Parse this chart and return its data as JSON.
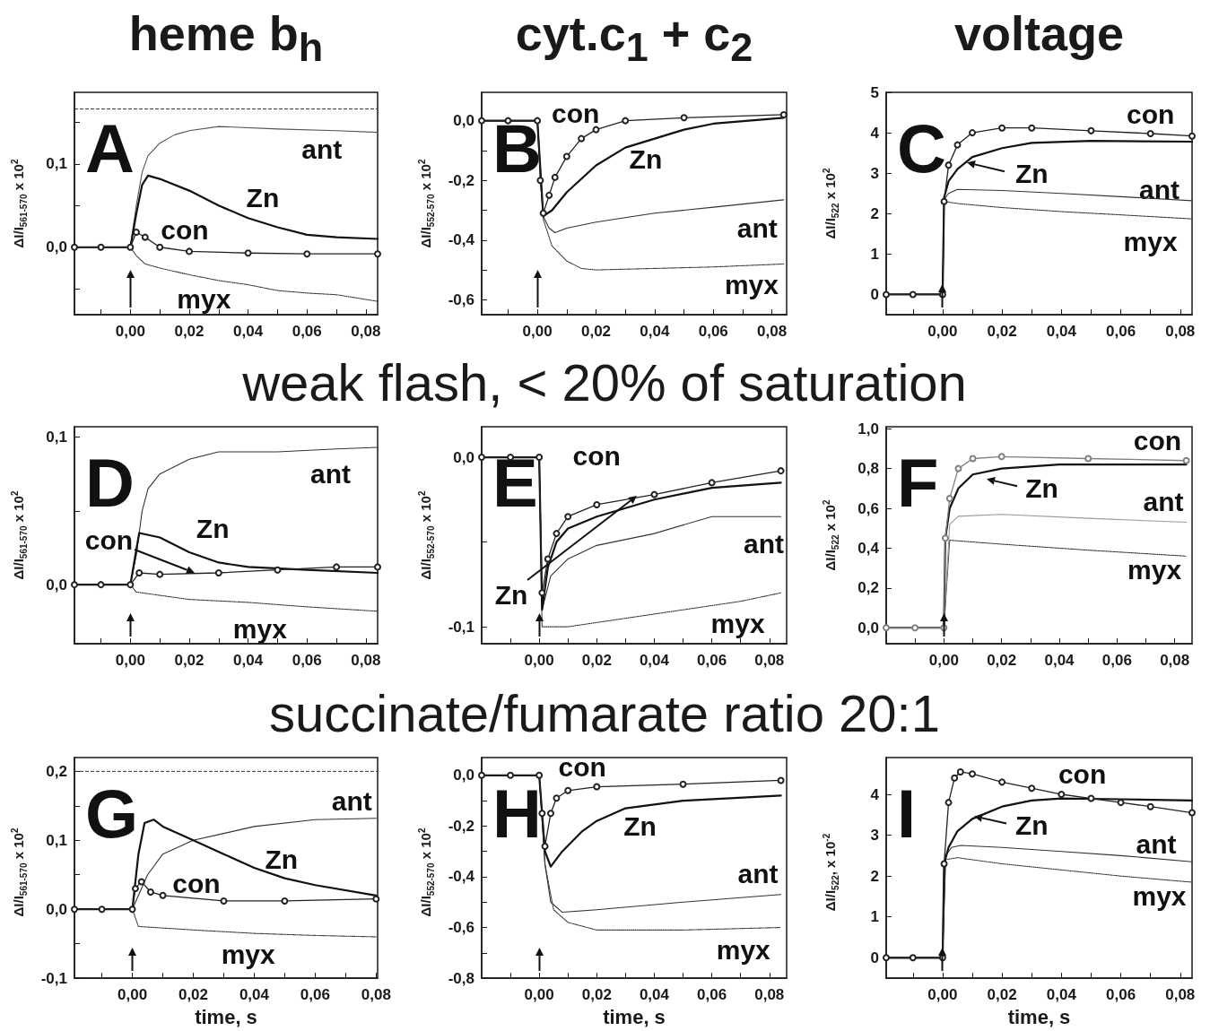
{
  "chart_data": [
    {
      "type": "line",
      "title": "heme b$_{h}$",
      "ylabel": "ΔI/I$_{561-570}$ x 10$^{2}$",
      "annotations": [
        "A",
        "ant",
        "Zn",
        "con",
        "myx"
      ],
      "xlim": [
        -0.019,
        0.084
      ],
      "ylim": [
        -0.081,
        0.186
      ],
      "xticks": [
        {
          "value": -0.01,
          "label": null
        },
        {
          "value": 0,
          "label": "0,00"
        },
        {
          "value": 0.01,
          "label": null
        },
        {
          "value": 0.02,
          "label": "0,02"
        },
        {
          "value": 0.03,
          "label": null
        },
        {
          "value": 0.04,
          "label": "0,04"
        },
        {
          "value": 0.05,
          "label": null
        },
        {
          "value": 0.06,
          "label": "0,06"
        },
        {
          "value": 0.07,
          "label": null
        },
        {
          "value": 0.08,
          "label": "0,08"
        }
      ],
      "yticks": [
        {
          "value": -0.05,
          "label": null
        },
        {
          "value": 0,
          "label": "0,0"
        },
        {
          "value": 0.05,
          "label": null
        },
        {
          "value": 0.1,
          "label": "0,1"
        },
        {
          "value": 0.15,
          "label": null
        }
      ],
      "ref_lines": [
        {
          "axis": "y",
          "value": 0.166,
          "line_style": "dashed",
          "color": "#333333"
        }
      ],
      "series": [
        {
          "color": "#222222",
          "marker": "circle",
          "x": [
            -0.019,
            -0.01,
            0,
            0.002,
            0.005,
            0.01,
            0.02,
            0.04,
            0.06,
            0.084
          ],
          "values": [
            0,
            0,
            0,
            0.018,
            0.012,
            0,
            -0.005,
            -0.007,
            -0.008,
            -0.008
          ]
        },
        {
          "color": "#111111",
          "x": [
            -0.019,
            -0.01,
            0,
            0.002,
            0.004,
            0.006,
            0.01,
            0.02,
            0.03,
            0.04,
            0.05,
            0.06,
            0.07,
            0.084
          ],
          "values": [
            0,
            0,
            0,
            0.04,
            0.075,
            0.086,
            0.082,
            0.068,
            0.05,
            0.035,
            0.024,
            0.015,
            0.012,
            0.01
          ]
        },
        {
          "color": "#555555",
          "x": [
            -0.019,
            -0.01,
            0,
            0.002,
            0.004,
            0.006,
            0.01,
            0.015,
            0.02,
            0.03,
            0.05,
            0.07,
            0.084
          ],
          "values": [
            0,
            0,
            0,
            0.05,
            0.09,
            0.11,
            0.125,
            0.135,
            0.14,
            0.145,
            0.142,
            0.14,
            0.138
          ]
        },
        {
          "color": "#333333",
          "line_style": "dotted",
          "x": [
            -0.019,
            -0.01,
            0,
            0.002,
            0.005,
            0.01,
            0.02,
            0.03,
            0.04,
            0.05,
            0.06,
            0.07,
            0.084
          ],
          "values": [
            0,
            0,
            0,
            -0.01,
            -0.02,
            -0.025,
            -0.033,
            -0.04,
            -0.045,
            -0.052,
            -0.055,
            -0.057,
            -0.065
          ]
        }
      ]
    },
    {
      "type": "line",
      "title": "cyt.c$_{1}$ + c$_{2}$",
      "ylabel": "ΔI/I$_{552-570}$ x 10$^{2}$",
      "annotations": [
        "B",
        "con",
        "Zn",
        "ant",
        "myx"
      ],
      "xlim": [
        -0.019,
        0.085
      ],
      "ylim": [
        -0.65,
        0.095
      ],
      "xticks": [
        {
          "value": -0.01,
          "label": null
        },
        {
          "value": 0,
          "label": "0,00"
        },
        {
          "value": 0.01,
          "label": null
        },
        {
          "value": 0.02,
          "label": "0,02"
        },
        {
          "value": 0.03,
          "label": null
        },
        {
          "value": 0.04,
          "label": "0,04"
        },
        {
          "value": 0.05,
          "label": null
        },
        {
          "value": 0.06,
          "label": "0,06"
        },
        {
          "value": 0.07,
          "label": null
        },
        {
          "value": 0.08,
          "label": "0,08"
        }
      ],
      "yticks": [
        {
          "value": -0.6,
          "label": "-0,6"
        },
        {
          "value": -0.5,
          "label": null
        },
        {
          "value": -0.4,
          "label": "-0,4"
        },
        {
          "value": -0.3,
          "label": null
        },
        {
          "value": -0.2,
          "label": "-0,2"
        },
        {
          "value": -0.1,
          "label": null
        },
        {
          "value": 0,
          "label": "0,0"
        }
      ],
      "series": [
        {
          "color": "#222222",
          "marker": "circle",
          "x": [
            -0.019,
            -0.01,
            0,
            0.001,
            0.002,
            0.004,
            0.006,
            0.01,
            0.015,
            0.02,
            0.03,
            0.05,
            0.084
          ],
          "values": [
            0,
            0,
            0,
            -0.2,
            -0.31,
            -0.25,
            -0.19,
            -0.12,
            -0.06,
            -0.03,
            0,
            0.01,
            0.02
          ]
        },
        {
          "color": "#111111",
          "x": [
            -0.019,
            -0.01,
            0,
            0.002,
            0.005,
            0.01,
            0.02,
            0.03,
            0.04,
            0.05,
            0.06,
            0.084
          ],
          "values": [
            0,
            0,
            0,
            -0.32,
            -0.3,
            -0.24,
            -0.15,
            -0.09,
            -0.06,
            -0.03,
            -0.01,
            0.01
          ]
        },
        {
          "color": "#333333",
          "x": [
            -0.019,
            -0.01,
            0,
            0.002,
            0.004,
            0.006,
            0.01,
            0.02,
            0.04,
            0.06,
            0.084
          ],
          "values": [
            0,
            0,
            0,
            -0.32,
            -0.36,
            -0.375,
            -0.36,
            -0.34,
            -0.31,
            -0.29,
            -0.265
          ]
        },
        {
          "color": "#333333",
          "line_style": "dotted",
          "x": [
            -0.019,
            -0.01,
            0,
            0.002,
            0.005,
            0.01,
            0.015,
            0.02,
            0.04,
            0.06,
            0.084
          ],
          "values": [
            0,
            0,
            0,
            -0.33,
            -0.42,
            -0.47,
            -0.495,
            -0.5,
            -0.495,
            -0.49,
            -0.48
          ]
        }
      ]
    },
    {
      "type": "line",
      "title": "voltage",
      "ylabel": "ΔI/I$_{522}$ x 10$^{2}$",
      "annotations": [
        "C",
        "con",
        "Zn",
        "ant",
        "myx"
      ],
      "xlim": [
        -0.019,
        0.084
      ],
      "ylim": [
        -0.5,
        5
      ],
      "xticks": [
        {
          "value": -0.01,
          "label": null
        },
        {
          "value": 0,
          "label": "0,00"
        },
        {
          "value": 0.01,
          "label": null
        },
        {
          "value": 0.02,
          "label": "0,02"
        },
        {
          "value": 0.03,
          "label": null
        },
        {
          "value": 0.04,
          "label": "0,04"
        },
        {
          "value": 0.05,
          "label": null
        },
        {
          "value": 0.06,
          "label": "0,06"
        },
        {
          "value": 0.07,
          "label": null
        },
        {
          "value": 0.08,
          "label": "0,08"
        }
      ],
      "yticks": [
        0,
        1,
        2,
        3,
        4,
        5
      ],
      "series": [
        {
          "color": "#222222",
          "marker": "circle",
          "x": [
            -0.019,
            -0.01,
            0,
            0.0005,
            0.002,
            0.005,
            0.01,
            0.02,
            0.03,
            0.05,
            0.07,
            0.084
          ],
          "values": [
            0,
            0,
            0,
            2.3,
            3.2,
            3.7,
            4.0,
            4.12,
            4.12,
            4.05,
            3.98,
            3.92
          ]
        },
        {
          "color": "#111111",
          "x": [
            -0.019,
            -0.01,
            0,
            0.0005,
            0.002,
            0.005,
            0.01,
            0.02,
            0.03,
            0.05,
            0.084
          ],
          "values": [
            0,
            0,
            0,
            2.4,
            2.8,
            3.1,
            3.4,
            3.62,
            3.75,
            3.8,
            3.78
          ]
        },
        {
          "color": "#333333",
          "x": [
            -0.019,
            -0.01,
            0,
            0.0005,
            0.002,
            0.005,
            0.02,
            0.04,
            0.06,
            0.084
          ],
          "values": [
            0,
            0,
            0,
            2.35,
            2.5,
            2.6,
            2.57,
            2.5,
            2.42,
            2.32
          ]
        },
        {
          "color": "#333333",
          "line_style": "dotted",
          "x": [
            -0.019,
            -0.01,
            0,
            0.0005,
            0.005,
            0.02,
            0.04,
            0.06,
            0.084
          ],
          "values": [
            0,
            0,
            0,
            2.3,
            2.25,
            2.15,
            2.05,
            1.97,
            1.87
          ]
        }
      ]
    },
    {
      "type": "line",
      "title": "weak flash, < 20% of saturation",
      "ylabel": "ΔI/I$_{561-570}$ x 10$^{2}$",
      "annotations": [
        "D",
        "ant",
        "Zn",
        "con",
        "myx"
      ],
      "xlim": [
        -0.019,
        0.084
      ],
      "ylim": [
        -0.04,
        0.107
      ],
      "xticks": [
        {
          "value": -0.01,
          "label": null
        },
        {
          "value": 0,
          "label": "0,00"
        },
        {
          "value": 0.01,
          "label": null
        },
        {
          "value": 0.02,
          "label": "0,02"
        },
        {
          "value": 0.03,
          "label": null
        },
        {
          "value": 0.04,
          "label": "0,04"
        },
        {
          "value": 0.05,
          "label": null
        },
        {
          "value": 0.06,
          "label": "0,06"
        },
        {
          "value": 0.07,
          "label": null
        },
        {
          "value": 0.08,
          "label": "0,08"
        }
      ],
      "yticks": [
        {
          "value": 0,
          "label": "0,0"
        },
        {
          "value": 0.05,
          "label": null
        },
        {
          "value": 0.1,
          "label": "0,1"
        }
      ],
      "series": [
        {
          "color": "#222222",
          "marker": "circle",
          "x": [
            -0.019,
            -0.01,
            0,
            0.003,
            0.01,
            0.03,
            0.05,
            0.07,
            0.084
          ],
          "values": [
            0,
            0,
            0,
            0.008,
            0.007,
            0.008,
            0.01,
            0.012,
            0.012
          ]
        },
        {
          "color": "#111111",
          "x": [
            -0.019,
            -0.01,
            0,
            0.003,
            0.01,
            0.02,
            0.03,
            0.04,
            0.06,
            0.084
          ],
          "values": [
            0,
            0,
            0,
            0.035,
            0.032,
            0.022,
            0.015,
            0.012,
            0.01,
            0.008
          ]
        },
        {
          "color": "#333333",
          "x": [
            -0.019,
            -0.01,
            0,
            0.002,
            0.004,
            0.006,
            0.01,
            0.02,
            0.03,
            0.05,
            0.07,
            0.084
          ],
          "values": [
            0,
            0,
            0,
            0.02,
            0.05,
            0.065,
            0.075,
            0.085,
            0.09,
            0.09,
            0.092,
            0.093
          ]
        },
        {
          "color": "#333333",
          "line_style": "dotted",
          "x": [
            -0.019,
            -0.01,
            0,
            0.002,
            0.02,
            0.04,
            0.06,
            0.084
          ],
          "values": [
            0,
            0,
            0,
            -0.005,
            -0.01,
            -0.012,
            -0.015,
            -0.018
          ]
        }
      ]
    },
    {
      "type": "line",
      "ylabel": "ΔI/I$_{552-570}$ x 10$^{2}$",
      "annotations": [
        "E",
        "con",
        "Zn",
        "ant",
        "myx"
      ],
      "xlim": [
        -0.02,
        0.086
      ],
      "ylim": [
        -0.11,
        0.018
      ],
      "xticks": [
        {
          "value": -0.01,
          "label": null
        },
        {
          "value": 0,
          "label": "0,00"
        },
        {
          "value": 0.01,
          "label": null
        },
        {
          "value": 0.02,
          "label": "0,02"
        },
        {
          "value": 0.03,
          "label": null
        },
        {
          "value": 0.04,
          "label": "0,04"
        },
        {
          "value": 0.05,
          "label": null
        },
        {
          "value": 0.06,
          "label": "0,06"
        },
        {
          "value": 0.07,
          "label": null
        },
        {
          "value": 0.08,
          "label": "0,08"
        }
      ],
      "yticks": [
        {
          "value": -0.1,
          "label": "-0,1"
        },
        {
          "value": -0.05,
          "label": null
        },
        {
          "value": 0,
          "label": "0,0"
        }
      ],
      "series": [
        {
          "color": "#222222",
          "marker": "circle",
          "x": [
            -0.02,
            -0.01,
            0,
            0.001,
            0.003,
            0.006,
            0.01,
            0.02,
            0.04,
            0.06,
            0.084
          ],
          "values": [
            0,
            0,
            0,
            -0.08,
            -0.06,
            -0.045,
            -0.035,
            -0.028,
            -0.022,
            -0.015,
            -0.008
          ]
        },
        {
          "color": "#111111",
          "x": [
            -0.02,
            -0.01,
            0,
            0.001,
            0.003,
            0.006,
            0.01,
            0.02,
            0.04,
            0.06,
            0.084
          ],
          "values": [
            0,
            0,
            0,
            -0.09,
            -0.065,
            -0.05,
            -0.042,
            -0.035,
            -0.025,
            -0.018,
            -0.015
          ]
        },
        {
          "color": "#333333",
          "x": [
            -0.02,
            -0.01,
            0,
            0.001,
            0.004,
            0.01,
            0.02,
            0.04,
            0.06,
            0.084
          ],
          "values": [
            0,
            0,
            0,
            -0.09,
            -0.07,
            -0.06,
            -0.052,
            -0.045,
            -0.035,
            -0.035
          ]
        },
        {
          "color": "#333333",
          "line_style": "dotted",
          "x": [
            -0.02,
            -0.01,
            0,
            0.001,
            0.01,
            0.03,
            0.05,
            0.07,
            0.084
          ],
          "values": [
            0,
            0,
            0,
            -0.1,
            -0.1,
            -0.095,
            -0.09,
            -0.085,
            -0.08
          ]
        }
      ]
    },
    {
      "type": "line",
      "ylabel": "ΔI/I$_{522}$ x 10$^{2}$",
      "annotations": [
        "F",
        "con",
        "Zn",
        "ant",
        "myx"
      ],
      "xlim": [
        -0.02,
        0.086
      ],
      "ylim": [
        -0.08,
        1.01
      ],
      "xticks": [
        {
          "value": -0.01,
          "label": null
        },
        {
          "value": 0,
          "label": "0,00"
        },
        {
          "value": 0.01,
          "label": null
        },
        {
          "value": 0.02,
          "label": "0,02"
        },
        {
          "value": 0.03,
          "label": null
        },
        {
          "value": 0.04,
          "label": "0,04"
        },
        {
          "value": 0.05,
          "label": null
        },
        {
          "value": 0.06,
          "label": "0,06"
        },
        {
          "value": 0.07,
          "label": null
        },
        {
          "value": 0.08,
          "label": "0,08"
        }
      ],
      "yticks": [
        {
          "value": 0,
          "label": "0,0"
        },
        {
          "value": 0.2,
          "label": "0,2"
        },
        {
          "value": 0.4,
          "label": "0,4"
        },
        {
          "value": 0.6,
          "label": "0,6"
        },
        {
          "value": 0.8,
          "label": "0,8"
        },
        {
          "value": 1,
          "label": "1,0"
        }
      ],
      "series": [
        {
          "color": "#808080",
          "marker": "circle",
          "x": [
            -0.02,
            -0.01,
            0,
            0.0005,
            0.002,
            0.005,
            0.01,
            0.02,
            0.05,
            0.084
          ],
          "values": [
            0,
            0,
            0,
            0.45,
            0.65,
            0.8,
            0.85,
            0.86,
            0.85,
            0.84
          ]
        },
        {
          "color": "#111111",
          "x": [
            -0.02,
            -0.01,
            0,
            0.0005,
            0.002,
            0.005,
            0.01,
            0.02,
            0.04,
            0.084
          ],
          "values": [
            0,
            0,
            0,
            0.45,
            0.6,
            0.7,
            0.77,
            0.8,
            0.82,
            0.82
          ]
        },
        {
          "color": "#999999",
          "x": [
            -0.02,
            -0.01,
            0,
            0.002,
            0.005,
            0.02,
            0.05,
            0.084
          ],
          "values": [
            0,
            0,
            0,
            0.52,
            0.56,
            0.57,
            0.55,
            0.53
          ]
        },
        {
          "color": "#333333",
          "line_style": "dotted",
          "x": [
            -0.02,
            -0.01,
            0,
            0.002,
            0.02,
            0.05,
            0.084
          ],
          "values": [
            0,
            0,
            0,
            0.44,
            0.42,
            0.39,
            0.36
          ]
        }
      ]
    },
    {
      "type": "line",
      "title": "succinate/fumarate ratio 20:1",
      "xlabel": "time, s",
      "ylabel": "ΔI/I$_{561-570}$ x 10$^{2}$",
      "annotations": [
        "G",
        "ant",
        "Zn",
        "con",
        "myx"
      ],
      "xlim": [
        -0.019,
        0.0805
      ],
      "ylim": [
        -0.1,
        0.22
      ],
      "xticks": [
        {
          "value": -0.01,
          "label": null
        },
        {
          "value": 0,
          "label": "0,00"
        },
        {
          "value": 0.01,
          "label": null
        },
        {
          "value": 0.02,
          "label": "0,02"
        },
        {
          "value": 0.03,
          "label": null
        },
        {
          "value": 0.04,
          "label": "0,04"
        },
        {
          "value": 0.05,
          "label": null
        },
        {
          "value": 0.06,
          "label": "0,06"
        },
        {
          "value": 0.07,
          "label": null
        },
        {
          "value": 0.08,
          "label": "0,08"
        }
      ],
      "yticks": [
        {
          "value": -0.1,
          "label": "-0,1"
        },
        {
          "value": -0.05,
          "label": null
        },
        {
          "value": 0,
          "label": "0,0"
        },
        {
          "value": 0.05,
          "label": null
        },
        {
          "value": 0.1,
          "label": "0,1"
        },
        {
          "value": 0.15,
          "label": null
        },
        {
          "value": 0.2,
          "label": "0,2"
        }
      ],
      "ref_lines": [
        {
          "axis": "y",
          "value": 0.2,
          "line_style": "dashed",
          "color": "#333333"
        }
      ],
      "series": [
        {
          "color": "#222222",
          "marker": "circle",
          "x": [
            -0.019,
            -0.01,
            0,
            0.001,
            0.003,
            0.006,
            0.01,
            0.03,
            0.05,
            0.08
          ],
          "values": [
            0,
            0,
            0,
            0.03,
            0.04,
            0.025,
            0.02,
            0.012,
            0.012,
            0.015
          ]
        },
        {
          "color": "#111111",
          "x": [
            -0.019,
            -0.01,
            0,
            0.002,
            0.004,
            0.007,
            0.01,
            0.02,
            0.03,
            0.04,
            0.05,
            0.06,
            0.08
          ],
          "values": [
            0,
            0,
            0,
            0.08,
            0.125,
            0.13,
            0.12,
            0.1,
            0.08,
            0.06,
            0.045,
            0.035,
            0.02
          ]
        },
        {
          "color": "#333333",
          "x": [
            -0.019,
            -0.01,
            0,
            0.002,
            0.005,
            0.01,
            0.02,
            0.03,
            0.04,
            0.06,
            0.08
          ],
          "values": [
            0,
            0,
            0,
            0.02,
            0.05,
            0.08,
            0.1,
            0.11,
            0.12,
            0.13,
            0.132
          ]
        },
        {
          "color": "#333333",
          "line_style": "dotted",
          "x": [
            -0.019,
            -0.01,
            0,
            0.002,
            0.02,
            0.04,
            0.06,
            0.08
          ],
          "values": [
            0,
            0,
            0,
            -0.025,
            -0.03,
            -0.035,
            -0.038,
            -0.04
          ]
        }
      ]
    },
    {
      "type": "line",
      "xlabel": "time, s",
      "ylabel": "ΔI/I$_{552-570}$ x 10$^{2}$",
      "annotations": [
        "H",
        "con",
        "Zn",
        "ant",
        "myx"
      ],
      "xlim": [
        -0.02,
        0.086
      ],
      "ylim": [
        -0.8,
        0.07
      ],
      "xticks": [
        {
          "value": -0.01,
          "label": null
        },
        {
          "value": 0,
          "label": "0,00"
        },
        {
          "value": 0.01,
          "label": null
        },
        {
          "value": 0.02,
          "label": "0,02"
        },
        {
          "value": 0.03,
          "label": null
        },
        {
          "value": 0.04,
          "label": "0,04"
        },
        {
          "value": 0.05,
          "label": null
        },
        {
          "value": 0.06,
          "label": "0,06"
        },
        {
          "value": 0.07,
          "label": null
        },
        {
          "value": 0.08,
          "label": "0,08"
        }
      ],
      "yticks": [
        {
          "value": -0.8,
          "label": "-0,8"
        },
        {
          "value": -0.7,
          "label": null
        },
        {
          "value": -0.6,
          "label": "-0,6"
        },
        {
          "value": -0.5,
          "label": null
        },
        {
          "value": -0.4,
          "label": "-0,4"
        },
        {
          "value": -0.3,
          "label": null
        },
        {
          "value": -0.2,
          "label": "-0,2"
        },
        {
          "value": -0.1,
          "label": null
        },
        {
          "value": 0,
          "label": "0,0"
        }
      ],
      "series": [
        {
          "color": "#222222",
          "marker": "circle",
          "x": [
            -0.02,
            -0.01,
            0,
            0.001,
            0.002,
            0.004,
            0.006,
            0.01,
            0.02,
            0.05,
            0.084
          ],
          "values": [
            0,
            0,
            0,
            -0.15,
            -0.28,
            -0.15,
            -0.09,
            -0.06,
            -0.045,
            -0.035,
            -0.02
          ]
        },
        {
          "color": "#111111",
          "x": [
            -0.02,
            -0.01,
            0,
            0.002,
            0.004,
            0.008,
            0.015,
            0.02,
            0.03,
            0.05,
            0.084
          ],
          "values": [
            0,
            0,
            0,
            -0.3,
            -0.36,
            -0.3,
            -0.22,
            -0.18,
            -0.13,
            -0.1,
            -0.08
          ]
        },
        {
          "color": "#333333",
          "x": [
            -0.02,
            -0.01,
            0,
            0.002,
            0.004,
            0.008,
            0.02,
            0.05,
            0.084
          ],
          "values": [
            0,
            0,
            0,
            -0.35,
            -0.5,
            -0.54,
            -0.53,
            -0.5,
            -0.47
          ]
        },
        {
          "color": "#333333",
          "line_style": "dotted",
          "x": [
            -0.02,
            -0.01,
            0,
            0.002,
            0.005,
            0.01,
            0.02,
            0.05,
            0.084
          ],
          "values": [
            0,
            0,
            0,
            -0.35,
            -0.53,
            -0.58,
            -0.61,
            -0.61,
            -0.6
          ]
        }
      ]
    },
    {
      "type": "line",
      "xlabel": "time, s",
      "ylabel": "ΔI/I$_{522}$, x 10$^{-2}$",
      "annotations": [
        "I",
        "con",
        "Zn",
        "ant",
        "myx"
      ],
      "xlim": [
        -0.019,
        0.084
      ],
      "ylim": [
        -0.5,
        4.9
      ],
      "xticks": [
        {
          "value": -0.01,
          "label": null
        },
        {
          "value": 0,
          "label": "0,00"
        },
        {
          "value": 0.01,
          "label": null
        },
        {
          "value": 0.02,
          "label": "0,02"
        },
        {
          "value": 0.03,
          "label": null
        },
        {
          "value": 0.04,
          "label": "0,04"
        },
        {
          "value": 0.05,
          "label": null
        },
        {
          "value": 0.06,
          "label": "0,06"
        },
        {
          "value": 0.07,
          "label": null
        },
        {
          "value": 0.08,
          "label": "0,08"
        }
      ],
      "yticks": [
        0,
        1,
        2,
        3,
        4
      ],
      "series": [
        {
          "color": "#222222",
          "marker": "circle",
          "x": [
            -0.019,
            -0.01,
            0,
            0.0005,
            0.002,
            0.004,
            0.006,
            0.01,
            0.02,
            0.03,
            0.04,
            0.05,
            0.06,
            0.07,
            0.084
          ],
          "values": [
            0,
            0,
            0,
            2.3,
            3.8,
            4.4,
            4.55,
            4.5,
            4.3,
            4.15,
            4.0,
            3.9,
            3.8,
            3.7,
            3.55
          ]
        },
        {
          "color": "#111111",
          "x": [
            -0.019,
            -0.01,
            0,
            0.0005,
            0.002,
            0.005,
            0.01,
            0.02,
            0.03,
            0.04,
            0.06,
            0.084
          ],
          "values": [
            0,
            0,
            0,
            2.3,
            2.7,
            3.1,
            3.4,
            3.7,
            3.85,
            3.9,
            3.88,
            3.85
          ]
        },
        {
          "color": "#333333",
          "x": [
            -0.019,
            -0.01,
            0,
            0.001,
            0.003,
            0.006,
            0.02,
            0.04,
            0.06,
            0.084
          ],
          "values": [
            0,
            0,
            0,
            2.5,
            2.7,
            2.75,
            2.7,
            2.6,
            2.5,
            2.35
          ]
        },
        {
          "color": "#333333",
          "line_style": "dotted",
          "x": [
            -0.019,
            -0.01,
            0,
            0.001,
            0.005,
            0.02,
            0.04,
            0.06,
            0.084
          ],
          "values": [
            0,
            0,
            0,
            2.4,
            2.45,
            2.3,
            2.15,
            2.0,
            1.85
          ]
        }
      ]
    }
  ]
}
